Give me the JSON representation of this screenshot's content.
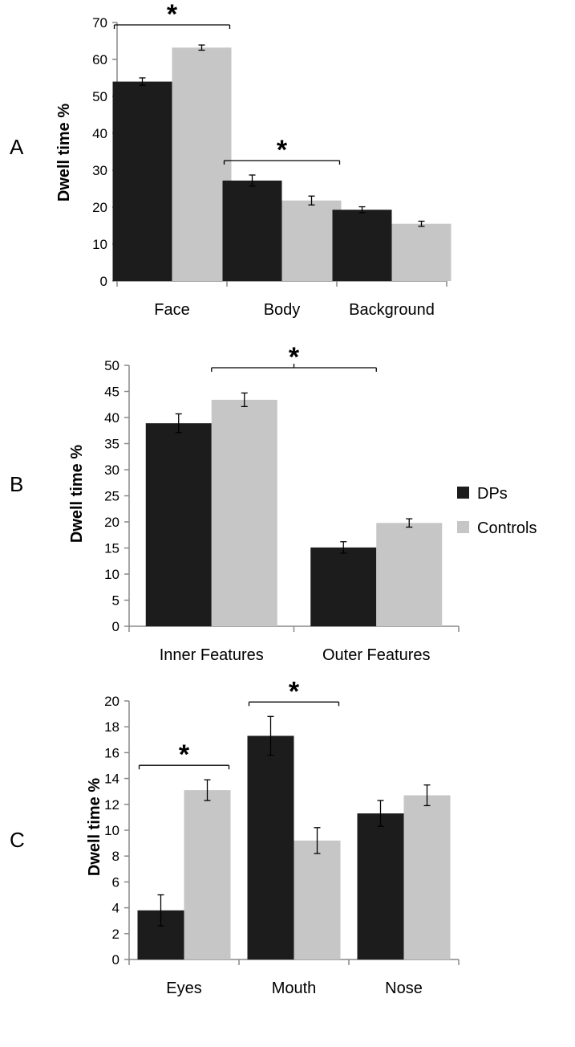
{
  "colors": {
    "DPs": "#1c1c1c",
    "Controls": "#c6c6c6",
    "axis": "#888888"
  },
  "legend": [
    {
      "key": "DPs",
      "label": "DPs"
    },
    {
      "key": "Controls",
      "label": "Controls"
    }
  ],
  "chart_data": [
    {
      "type": "bar",
      "panel_label": "A",
      "ylabel": "Dwell time %",
      "ylim": [
        0,
        70
      ],
      "yticks": [
        0,
        10,
        20,
        30,
        40,
        50,
        60,
        70
      ],
      "categories": [
        "Face",
        "Body",
        "Background"
      ],
      "series": [
        {
          "name": "DPs",
          "values": [
            54,
            27.2,
            19.3
          ],
          "errors": [
            1.0,
            1.5,
            0.8
          ]
        },
        {
          "name": "Controls",
          "values": [
            63.2,
            21.8,
            15.5
          ],
          "errors": [
            0.7,
            1.2,
            0.7
          ]
        }
      ],
      "significance": [
        {
          "symbol": "*",
          "from": [
            0,
            0
          ],
          "to": [
            0,
            1
          ]
        },
        {
          "symbol": "*",
          "from": [
            1,
            0
          ],
          "to": [
            1,
            1
          ]
        }
      ]
    },
    {
      "type": "bar",
      "panel_label": "B",
      "ylabel": "Dwell time %",
      "ylim": [
        0,
        50
      ],
      "yticks": [
        0,
        5,
        10,
        15,
        20,
        25,
        30,
        35,
        40,
        45,
        50
      ],
      "categories": [
        "Inner Features",
        "Outer Features"
      ],
      "series": [
        {
          "name": "DPs",
          "values": [
            38.9,
            15.1
          ],
          "errors": [
            1.8,
            1.1
          ]
        },
        {
          "name": "Controls",
          "values": [
            43.4,
            19.8
          ],
          "errors": [
            1.3,
            0.8
          ]
        }
      ],
      "significance": [
        {
          "symbol": "*",
          "from": [
            0,
            0.5
          ],
          "to": [
            1,
            0.5
          ]
        }
      ]
    },
    {
      "type": "bar",
      "panel_label": "C",
      "ylabel": "Dwell time %",
      "ylim": [
        0,
        20
      ],
      "yticks": [
        0,
        2,
        4,
        6,
        8,
        10,
        12,
        14,
        16,
        18,
        20
      ],
      "categories": [
        "Eyes",
        "Mouth",
        "Nose"
      ],
      "series": [
        {
          "name": "DPs",
          "values": [
            3.8,
            17.3,
            11.3
          ],
          "errors": [
            1.2,
            1.5,
            1.0
          ]
        },
        {
          "name": "Controls",
          "values": [
            13.1,
            9.2,
            12.7
          ],
          "errors": [
            0.8,
            1.0,
            0.8
          ]
        }
      ],
      "significance": [
        {
          "symbol": "*",
          "from": [
            0,
            0
          ],
          "to": [
            0,
            1
          ]
        },
        {
          "symbol": "*",
          "from": [
            1,
            0
          ],
          "to": [
            1,
            1
          ]
        }
      ]
    }
  ]
}
